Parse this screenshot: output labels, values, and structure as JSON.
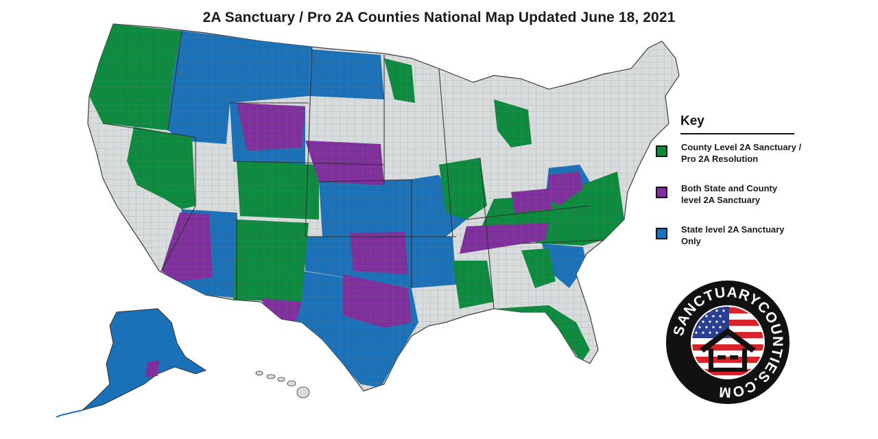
{
  "map": {
    "title": "2A Sanctuary / Pro 2A Counties National Map Updated June 18, 2021",
    "colors": {
      "county_level": "#0c8a3e",
      "state_and_county": "#7e2f9b",
      "state_only": "#1b71b8",
      "none": "#d9dcdc",
      "county_lines": "#8a8f8f",
      "state_lines": "#3a3a3a"
    }
  },
  "key": {
    "heading": "Key",
    "items": [
      {
        "label_line1": "County Level 2A Sanctuary /",
        "label_line2": "Pro 2A Resolution",
        "color": "#0c8a3e"
      },
      {
        "label_line1": "Both State and County",
        "label_line2": "level 2A Sanctuary",
        "color": "#7e2f9b"
      },
      {
        "label_line1": "State level 2A Sanctuary",
        "label_line2": "Only",
        "color": "#1b71b8"
      }
    ]
  },
  "logo": {
    "text": "SANCTUARYCOUNTIES.COM",
    "flag_colors": {
      "red": "#d8232a",
      "white": "#ffffff",
      "blue": "#2a3f8f"
    }
  }
}
